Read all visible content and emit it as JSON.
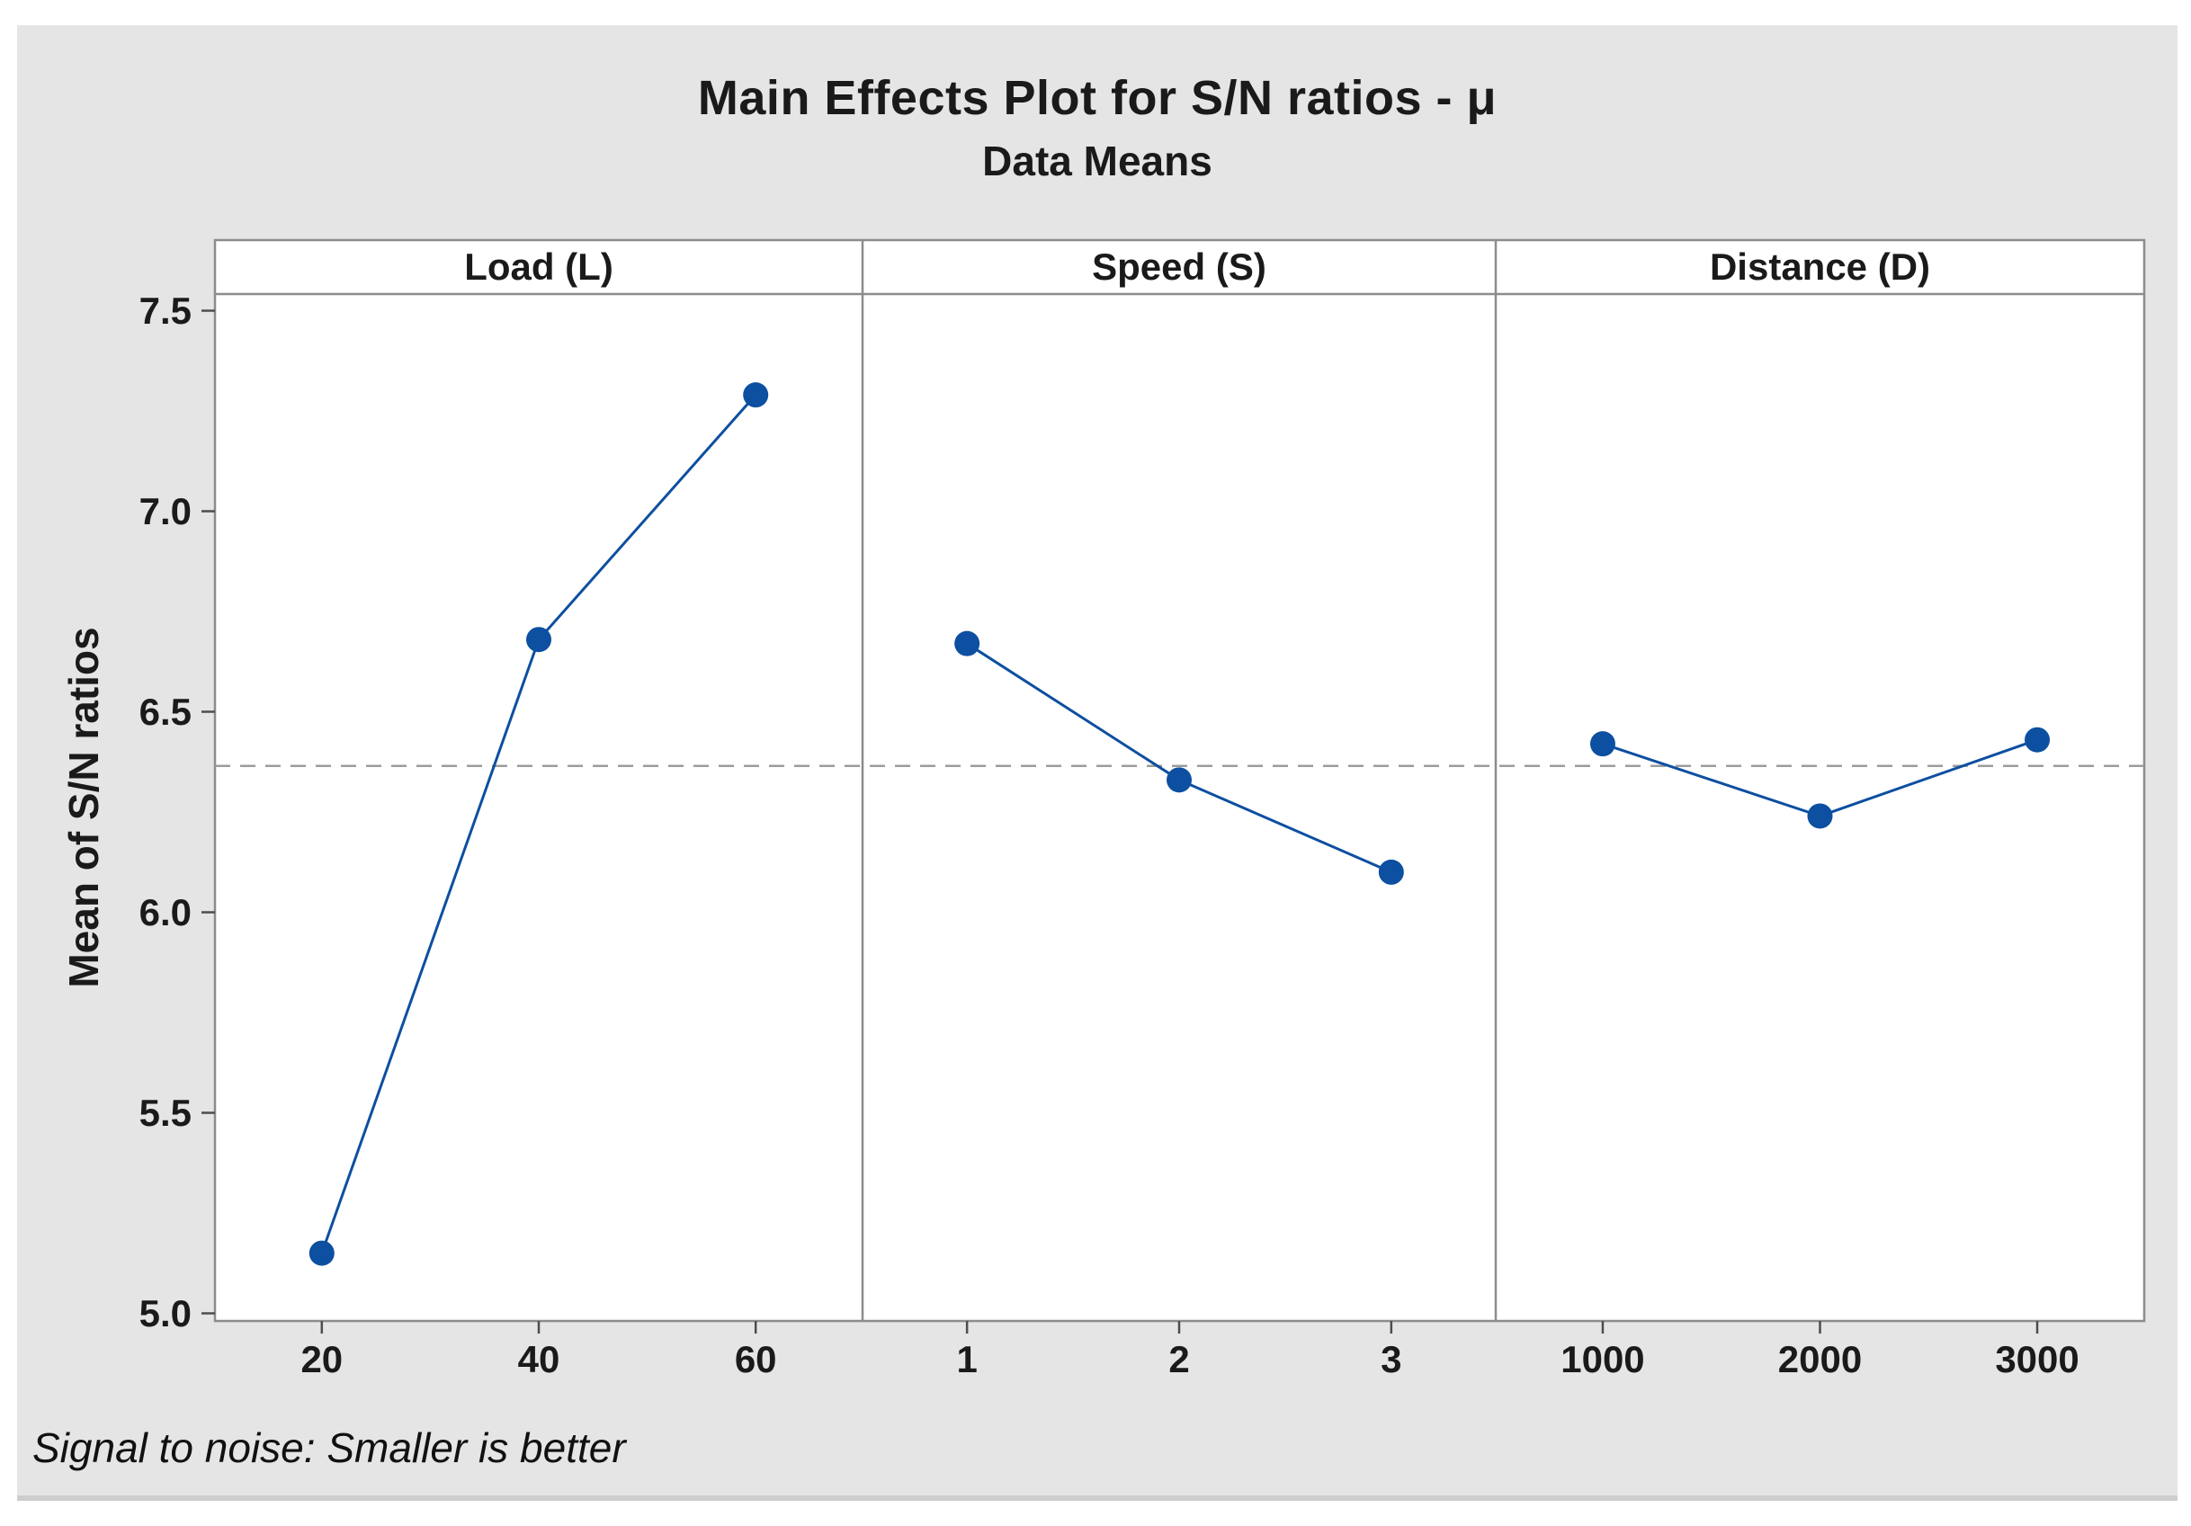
{
  "title": "Main Effects Plot for S/N ratios - μ",
  "subtitle": "Data Means",
  "ylabel": "Mean of S/N ratios",
  "footnote": "Signal to noise: Smaller is better",
  "colors": {
    "series_blue": "#0d4fa0",
    "dashed_mean": "#9c9c9c",
    "frame_border": "#8c8c8c",
    "tick_mark": "#4d4d4d",
    "canvas_bg": "#e5e5e5",
    "panel_bg": "#ffffff",
    "bottom_strip": "#cdcdcd",
    "text": "#1a1a1a"
  },
  "chart_data": {
    "type": "line",
    "title": "Main Effects Plot for S/N ratios - μ",
    "subtitle": "Data Means",
    "ylabel": "Mean of S/N ratios",
    "footnote": "Signal to noise: Smaller is better",
    "ylim": [
      4.98,
      7.54
    ],
    "yticks": [
      7.5,
      7.0,
      6.5,
      6.0,
      5.5,
      5.0
    ],
    "ytick_labels": [
      "7.5",
      "7.0",
      "6.5",
      "6.0",
      "5.5",
      "5.0"
    ],
    "mean_line_value": 6.365,
    "grid": false,
    "legend": "none",
    "marker": "circle",
    "panels": [
      {
        "header": "Load (L)",
        "categories": [
          "20",
          "40",
          "60"
        ],
        "values": [
          5.15,
          6.68,
          7.29
        ]
      },
      {
        "header": "Speed (S)",
        "categories": [
          "1",
          "2",
          "3"
        ],
        "values": [
          6.67,
          6.33,
          6.1
        ]
      },
      {
        "header": "Distance (D)",
        "categories": [
          "1000",
          "2000",
          "3000"
        ],
        "values": [
          6.42,
          6.24,
          6.43
        ]
      }
    ]
  }
}
